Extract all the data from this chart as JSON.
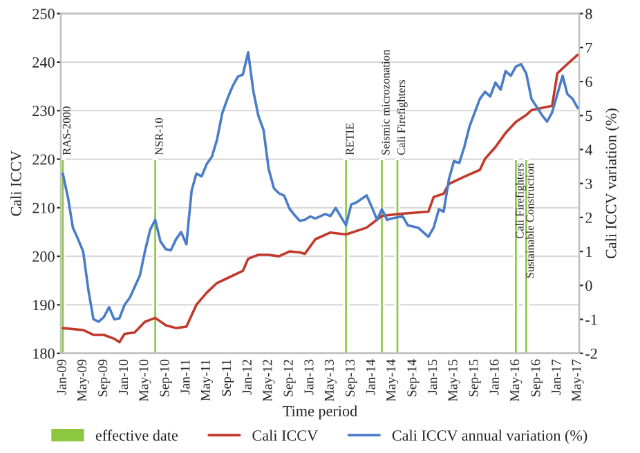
{
  "chart_data": {
    "type": "line",
    "xlabel": "Time period",
    "ylabel": "Cali ICCV",
    "y2label": "Cali ICCV variation (%)",
    "series": [
      {
        "name": "effective date",
        "type": "bar",
        "color": "#8dc63f",
        "x": [
          "2009-01",
          "2010-07",
          "2013-08",
          "2014-03",
          "2014-06",
          "2016-05",
          "2016-07"
        ],
        "values": [
          220,
          220,
          220,
          220,
          220,
          220,
          220
        ]
      },
      {
        "name": "Cali ICCV",
        "color": "#c0392b",
        "x": [
          "2009-01",
          "2009-05",
          "2009-07",
          "2009-09",
          "2009-11",
          "2009-12",
          "2010-01",
          "2010-03",
          "2010-05",
          "2010-07",
          "2010-09",
          "2010-11",
          "2011-01",
          "2011-03",
          "2011-05",
          "2011-07",
          "2011-09",
          "2011-11",
          "2011-12",
          "2012-01",
          "2012-03",
          "2012-05",
          "2012-07",
          "2012-09",
          "2012-11",
          "2012-12",
          "2013-02",
          "2013-05",
          "2013-08",
          "2013-12",
          "2014-03",
          "2014-06",
          "2014-12",
          "2015-01",
          "2015-03",
          "2015-04",
          "2015-07",
          "2015-10",
          "2015-11",
          "2016-01",
          "2016-03",
          "2016-05",
          "2016-07",
          "2016-08",
          "2016-12",
          "2017-01",
          "2017-03",
          "2017-05"
        ],
        "values": [
          185.2,
          184.8,
          183.8,
          183.8,
          183.0,
          182.3,
          184.0,
          184.3,
          186.5,
          187.3,
          185.8,
          185.2,
          185.5,
          190.0,
          192.5,
          194.5,
          195.5,
          196.5,
          197.0,
          199.5,
          200.3,
          200.3,
          200.0,
          201.0,
          200.8,
          200.5,
          203.5,
          204.9,
          204.5,
          205.9,
          208.3,
          208.7,
          209.2,
          212.2,
          212.9,
          214.9,
          216.4,
          217.8,
          220.1,
          222.5,
          225.4,
          227.7,
          229.1,
          230.1,
          231.0,
          237.7,
          239.6,
          241.5
        ]
      },
      {
        "name": "Cali ICCV annual variation (%)",
        "axis": "y2",
        "color": "#4a7cc9",
        "x": [
          "2009-01",
          "2009-02",
          "2009-03",
          "2009-04",
          "2009-05",
          "2009-06",
          "2009-07",
          "2009-08",
          "2009-09",
          "2009-10",
          "2009-11",
          "2009-12",
          "2010-01",
          "2010-02",
          "2010-04",
          "2010-05",
          "2010-06",
          "2010-07",
          "2010-08",
          "2010-09",
          "2010-10",
          "2010-11",
          "2010-12",
          "2011-01",
          "2011-02",
          "2011-03",
          "2011-04",
          "2011-05",
          "2011-06",
          "2011-07",
          "2011-08",
          "2011-09",
          "2011-10",
          "2011-11",
          "2011-12",
          "2012-01",
          "2012-02",
          "2012-03",
          "2012-04",
          "2012-05",
          "2012-06",
          "2012-07",
          "2012-08",
          "2012-09",
          "2012-10",
          "2012-11",
          "2012-12",
          "2013-01",
          "2013-02",
          "2013-04",
          "2013-05",
          "2013-06",
          "2013-08",
          "2013-09",
          "2013-10",
          "2013-12",
          "2014-01",
          "2014-02",
          "2014-03",
          "2014-04",
          "2014-05",
          "2014-07",
          "2014-08",
          "2014-10",
          "2014-12",
          "2015-01",
          "2015-02",
          "2015-03",
          "2015-04",
          "2015-05",
          "2015-06",
          "2015-07",
          "2015-08",
          "2015-10",
          "2015-11",
          "2015-12",
          "2016-01",
          "2016-02",
          "2016-03",
          "2016-04",
          "2016-05",
          "2016-06",
          "2016-07",
          "2016-08",
          "2016-10",
          "2016-11",
          "2016-12",
          "2017-02",
          "2017-03",
          "2017-04",
          "2017-05"
        ],
        "values": [
          3.29,
          2.57,
          1.71,
          1.36,
          1.0,
          -0.14,
          -1.0,
          -1.07,
          -0.93,
          -0.64,
          -1.0,
          -0.97,
          -0.57,
          -0.36,
          0.29,
          1.0,
          1.64,
          1.93,
          1.29,
          1.07,
          1.03,
          1.36,
          1.57,
          1.21,
          2.79,
          3.29,
          3.21,
          3.57,
          3.79,
          4.29,
          5.07,
          5.5,
          5.86,
          6.14,
          6.21,
          6.86,
          5.71,
          5.0,
          4.57,
          3.43,
          2.86,
          2.71,
          2.64,
          2.26,
          2.07,
          1.9,
          1.93,
          2.03,
          1.97,
          2.1,
          2.04,
          2.28,
          1.77,
          2.38,
          2.44,
          2.65,
          2.3,
          1.93,
          2.24,
          1.93,
          1.97,
          2.04,
          1.77,
          1.7,
          1.43,
          1.7,
          2.24,
          2.17,
          3.12,
          3.66,
          3.6,
          4.07,
          4.68,
          5.49,
          5.7,
          5.56,
          5.97,
          5.76,
          6.31,
          6.17,
          6.44,
          6.51,
          6.24,
          5.49,
          5.02,
          4.82,
          5.09,
          6.17,
          5.63,
          5.49,
          5.22
        ]
      }
    ],
    "annotations": [
      {
        "text": "RAS-2000",
        "x": "2009-01",
        "y": 220
      },
      {
        "text": "NSR-10",
        "x": "2010-07",
        "y": 220
      },
      {
        "text": "RETIE",
        "x": "2013-08",
        "y": 220
      },
      {
        "text": "Seismic microzonation",
        "x": "2014-03",
        "y": 220
      },
      {
        "text": "Cali Firefighters",
        "x": "2014-06",
        "y": 220
      },
      {
        "text": "Cali Firefighters",
        "x": "2016-05",
        "y": 220
      },
      {
        "text": "Sustainable Construction",
        "x": "2016-07",
        "y": 220
      }
    ],
    "xlim": [
      "2008-12-20",
      "2017-05-10"
    ],
    "xticks": [
      {
        "value": "2009-01",
        "label": "Jan-09"
      },
      {
        "value": "2009-05",
        "label": "May-09"
      },
      {
        "value": "2009-09",
        "label": "Sep-09"
      },
      {
        "value": "2010-01",
        "label": "Jan-10"
      },
      {
        "value": "2010-05",
        "label": "May-10"
      },
      {
        "value": "2010-09",
        "label": "Sep-10"
      },
      {
        "value": "2011-01",
        "label": "Jan-11"
      },
      {
        "value": "2011-05",
        "label": "May-11"
      },
      {
        "value": "2011-09",
        "label": "Sep-11"
      },
      {
        "value": "2012-01",
        "label": "Jan-12"
      },
      {
        "value": "2012-05",
        "label": "May-12"
      },
      {
        "value": "2012-09",
        "label": "Sep-12"
      },
      {
        "value": "2013-01",
        "label": "Jan-13"
      },
      {
        "value": "2013-05",
        "label": "May-13"
      },
      {
        "value": "2013-09",
        "label": "Sep-13"
      },
      {
        "value": "2014-01",
        "label": "Jan-14"
      },
      {
        "value": "2014-05",
        "label": "May-14"
      },
      {
        "value": "2014-09",
        "label": "Sep-14"
      },
      {
        "value": "2015-01",
        "label": "Jan-15"
      },
      {
        "value": "2015-05",
        "label": "May-15"
      },
      {
        "value": "2015-09",
        "label": "Sep-15"
      },
      {
        "value": "2016-01",
        "label": "Jan-16"
      },
      {
        "value": "2016-05",
        "label": "May-16"
      },
      {
        "value": "2016-09",
        "label": "Sep-16"
      },
      {
        "value": "2017-01",
        "label": "Jan-17"
      },
      {
        "value": "2017-05",
        "label": "May-17"
      }
    ],
    "ylim": [
      180,
      250
    ],
    "yticks": [
      180,
      190,
      200,
      210,
      220,
      230,
      240,
      250
    ],
    "y2lim": [
      -2,
      8
    ],
    "y2ticks": [
      -2,
      -1,
      0,
      1,
      2,
      3,
      4,
      5,
      6,
      7,
      8
    ],
    "grid": "y",
    "legend": "bottom"
  }
}
